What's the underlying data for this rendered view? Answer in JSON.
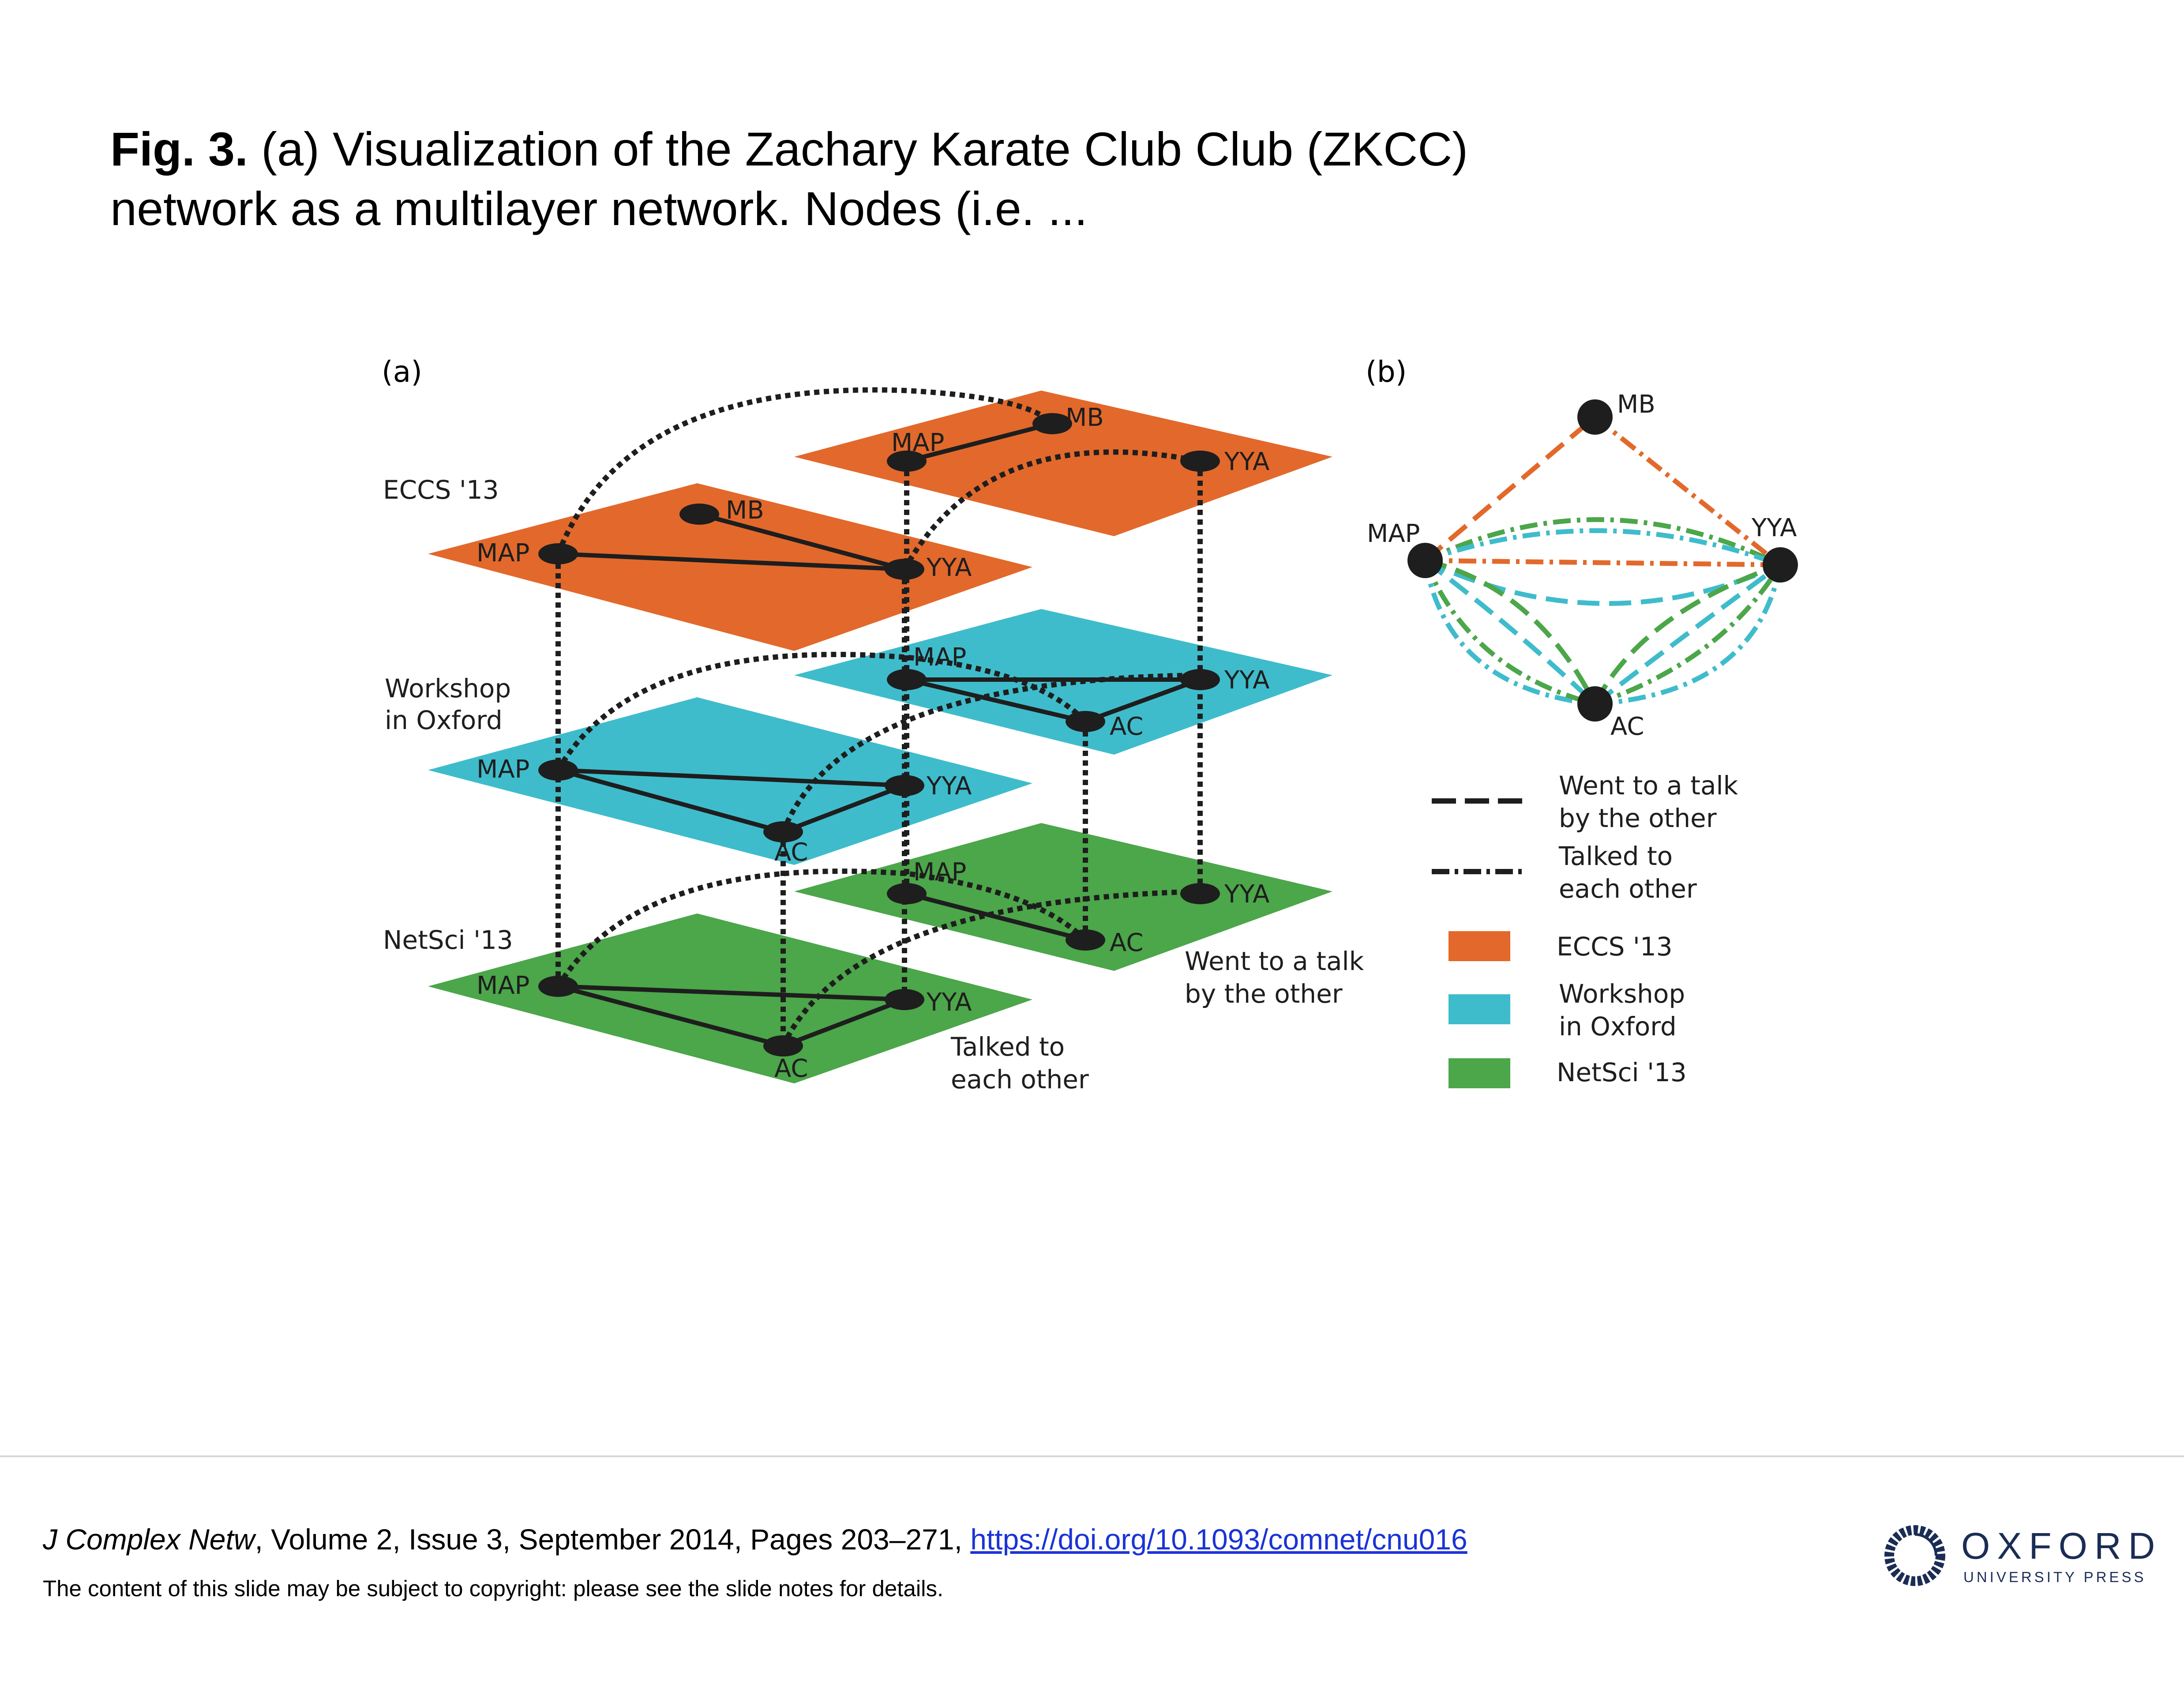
{
  "slide": {
    "title_bold": "Fig. 3.",
    "title_line1": " (a) Visualization of the Zachary Karate Club Club (ZKCC)",
    "title_line2": "network as a multilayer network. Nodes (i.e. ..."
  },
  "panel_a": {
    "label": "(a)",
    "layers": [
      "ECCS '13",
      "Workshop",
      "in Oxford",
      "NetSci '13"
    ],
    "nodes": {
      "map": "MAP",
      "mb": "MB",
      "yya": "YYA",
      "ac": "AC"
    },
    "aspect_went": [
      "Went to a talk",
      "by the other"
    ],
    "aspect_talked": [
      "Talked to",
      "each other"
    ]
  },
  "panel_b": {
    "label": "(b)",
    "nodes": {
      "mb": "MB",
      "map": "MAP",
      "yya": "YYA",
      "ac": "AC"
    },
    "legend": {
      "went": [
        "Went to a talk",
        "by the other"
      ],
      "talked": [
        "Talked to",
        "each other"
      ],
      "eccs": "ECCS '13",
      "workshop": [
        "Workshop",
        "in Oxford"
      ],
      "netsci": "NetSci '13"
    }
  },
  "colors": {
    "eccs": "#e2692b",
    "workshop": "#3fbccb",
    "netsci": "#4ca64a",
    "node": "#1e1e1e"
  },
  "citation": {
    "journal": "J Complex Netw",
    "details": ", Volume 2, Issue 3, September 2014, Pages 203–271, ",
    "doi": "https://doi.org/10.1093/comnet/cnu016"
  },
  "notice": "The content of this slide may be subject to copyright: please see the slide notes for details.",
  "publisher": {
    "word": "OXFORD",
    "sub": "UNIVERSITY PRESS",
    "icon": "oxford-logo-icon"
  }
}
